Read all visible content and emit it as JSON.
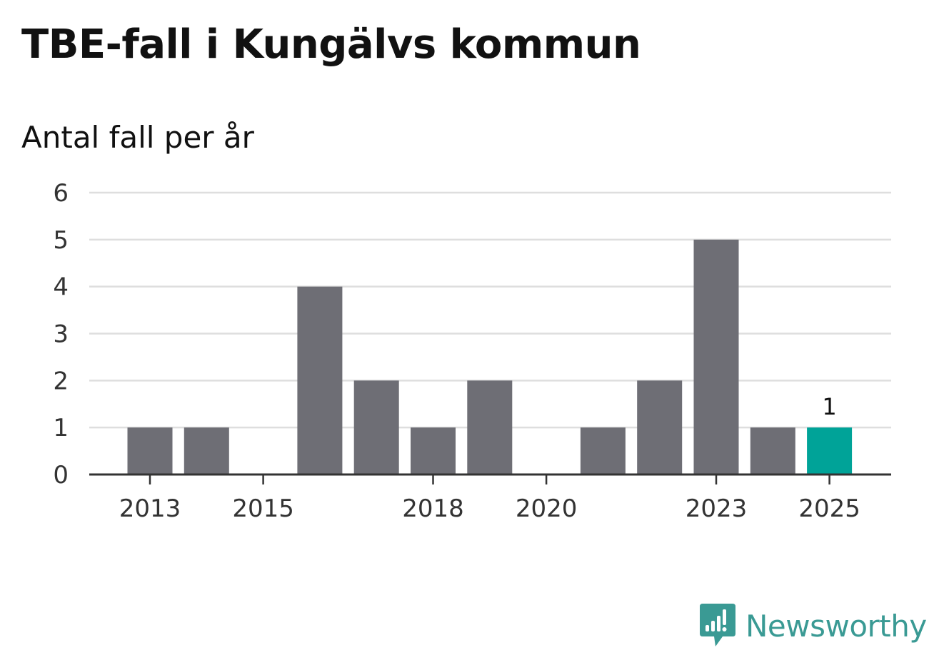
{
  "chart_data": {
    "type": "bar",
    "title": "TBE-fall i Kungälvs kommun",
    "subtitle": "Antal fall per år",
    "categories": [
      "2013",
      "2014",
      "2015",
      "2016",
      "2017",
      "2018",
      "2019",
      "2020",
      "2021",
      "2022",
      "2023",
      "2024",
      "2025"
    ],
    "values": [
      1,
      1,
      0,
      4,
      2,
      1,
      2,
      0,
      1,
      2,
      5,
      1,
      1
    ],
    "x_tick_labels": [
      "2013",
      "2015",
      "2018",
      "2020",
      "2023",
      "2025"
    ],
    "y_ticks": [
      "0",
      "1",
      "2",
      "3",
      "4",
      "5",
      "6"
    ],
    "ylim": [
      0,
      6
    ],
    "grid": true,
    "bar_color": "#6e6e75",
    "highlight_color": "#00a398",
    "highlight_category": "2025",
    "data_labels": [
      {
        "category": "2025",
        "text": "1"
      }
    ]
  },
  "brand": {
    "name": "Newsworthy",
    "icon": "newsworthy-logo-icon",
    "color": "#3a9a94"
  }
}
